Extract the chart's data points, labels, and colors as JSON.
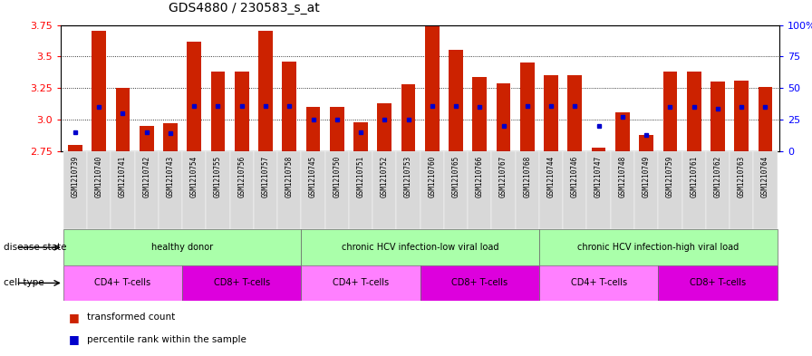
{
  "title": "GDS4880 / 230583_s_at",
  "samples": [
    "GSM1210739",
    "GSM1210740",
    "GSM1210741",
    "GSM1210742",
    "GSM1210743",
    "GSM1210754",
    "GSM1210755",
    "GSM1210756",
    "GSM1210757",
    "GSM1210758",
    "GSM1210745",
    "GSM1210750",
    "GSM1210751",
    "GSM1210752",
    "GSM1210753",
    "GSM1210760",
    "GSM1210765",
    "GSM1210766",
    "GSM1210767",
    "GSM1210768",
    "GSM1210744",
    "GSM1210746",
    "GSM1210747",
    "GSM1210748",
    "GSM1210749",
    "GSM1210759",
    "GSM1210761",
    "GSM1210762",
    "GSM1210763",
    "GSM1210764"
  ],
  "transformed_count": [
    2.8,
    3.7,
    3.25,
    2.95,
    2.97,
    3.62,
    3.38,
    3.38,
    3.7,
    3.46,
    3.1,
    3.1,
    2.98,
    3.13,
    3.28,
    3.75,
    3.55,
    3.34,
    3.29,
    3.45,
    3.35,
    3.35,
    2.78,
    3.06,
    2.88,
    3.38,
    3.38,
    3.3,
    3.31,
    3.26
  ],
  "percentile_rank": [
    15,
    35,
    30,
    15,
    14,
    36,
    36,
    36,
    36,
    36,
    25,
    25,
    15,
    25,
    25,
    36,
    36,
    35,
    20,
    36,
    36,
    36,
    20,
    27,
    13,
    35,
    35,
    34,
    35,
    35
  ],
  "baseline": 2.75,
  "ylim_left": [
    2.75,
    3.75
  ],
  "yticks_left": [
    2.75,
    3.0,
    3.25,
    3.5,
    3.75
  ],
  "yticks_right": [
    0,
    25,
    50,
    75,
    100
  ],
  "bar_color": "#CC2200",
  "marker_color": "#0000CC",
  "disease_state_groups": [
    {
      "label": "healthy donor",
      "start": 0,
      "end": 10,
      "color": "#AAFFAA"
    },
    {
      "label": "chronic HCV infection-low viral load",
      "start": 10,
      "end": 20,
      "color": "#AAFFAA"
    },
    {
      "label": "chronic HCV infection-high viral load",
      "start": 20,
      "end": 30,
      "color": "#AAFFAA"
    }
  ],
  "cell_type_groups": [
    {
      "label": "CD4+ T-cells",
      "start": 0,
      "end": 5,
      "color": "#FF80FF"
    },
    {
      "label": "CD8+ T-cells",
      "start": 5,
      "end": 10,
      "color": "#DD00DD"
    },
    {
      "label": "CD4+ T-cells",
      "start": 10,
      "end": 15,
      "color": "#FF80FF"
    },
    {
      "label": "CD8+ T-cells",
      "start": 15,
      "end": 20,
      "color": "#DD00DD"
    },
    {
      "label": "CD4+ T-cells",
      "start": 20,
      "end": 25,
      "color": "#FF80FF"
    },
    {
      "label": "CD8+ T-cells",
      "start": 25,
      "end": 30,
      "color": "#DD00DD"
    }
  ],
  "ds_label": "disease state",
  "ct_label": "cell type",
  "legend_tc": "transformed count",
  "legend_pr": "percentile rank within the sample",
  "xtick_bg": "#DDDDDD",
  "chart_bg": "#FFFFFF"
}
